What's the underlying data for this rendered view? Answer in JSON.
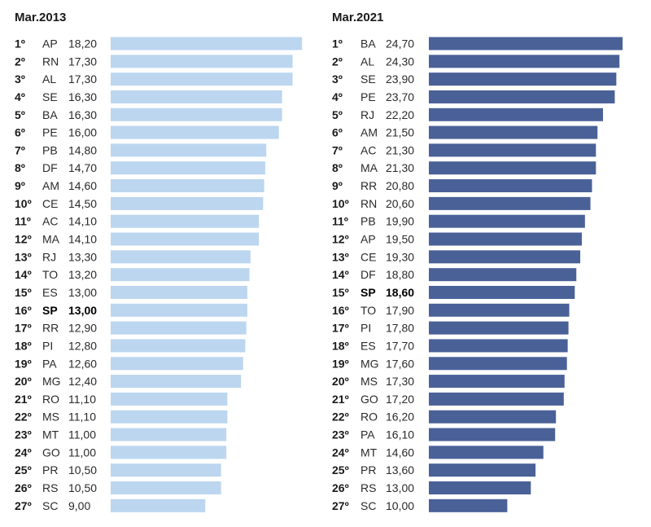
{
  "chart_data": [
    {
      "type": "bar",
      "orientation": "horizontal",
      "title": "Mar.2013",
      "bar_color": "#bcd6f0",
      "highlight": "SP",
      "rows": [
        {
          "rank": "1º",
          "state": "AP",
          "value": 18.2,
          "label": "18,20"
        },
        {
          "rank": "2º",
          "state": "RN",
          "value": 17.3,
          "label": "17,30"
        },
        {
          "rank": "3º",
          "state": "AL",
          "value": 17.3,
          "label": "17,30"
        },
        {
          "rank": "4º",
          "state": "SE",
          "value": 16.3,
          "label": "16,30"
        },
        {
          "rank": "5º",
          "state": "BA",
          "value": 16.3,
          "label": "16,30"
        },
        {
          "rank": "6º",
          "state": "PE",
          "value": 16.0,
          "label": "16,00"
        },
        {
          "rank": "7º",
          "state": "PB",
          "value": 14.8,
          "label": "14,80"
        },
        {
          "rank": "8º",
          "state": "DF",
          "value": 14.7,
          "label": "14,70"
        },
        {
          "rank": "9º",
          "state": "AM",
          "value": 14.6,
          "label": "14,60"
        },
        {
          "rank": "10º",
          "state": "CE",
          "value": 14.5,
          "label": "14,50"
        },
        {
          "rank": "11º",
          "state": "AC",
          "value": 14.1,
          "label": "14,10"
        },
        {
          "rank": "12º",
          "state": "MA",
          "value": 14.1,
          "label": "14,10"
        },
        {
          "rank": "13º",
          "state": "RJ",
          "value": 13.3,
          "label": "13,30"
        },
        {
          "rank": "14º",
          "state": "TO",
          "value": 13.2,
          "label": "13,20"
        },
        {
          "rank": "15º",
          "state": "ES",
          "value": 13.0,
          "label": "13,00"
        },
        {
          "rank": "16º",
          "state": "SP",
          "value": 13.0,
          "label": "13,00"
        },
        {
          "rank": "17º",
          "state": "RR",
          "value": 12.9,
          "label": "12,90"
        },
        {
          "rank": "18º",
          "state": "PI",
          "value": 12.8,
          "label": "12,80"
        },
        {
          "rank": "19º",
          "state": "PA",
          "value": 12.6,
          "label": "12,60"
        },
        {
          "rank": "20º",
          "state": "MG",
          "value": 12.4,
          "label": "12,40"
        },
        {
          "rank": "21º",
          "state": "RO",
          "value": 11.1,
          "label": "11,10"
        },
        {
          "rank": "22º",
          "state": "MS",
          "value": 11.1,
          "label": "11,10"
        },
        {
          "rank": "23º",
          "state": "MT",
          "value": 11.0,
          "label": "11,00"
        },
        {
          "rank": "24º",
          "state": "GO",
          "value": 11.0,
          "label": "11,00"
        },
        {
          "rank": "25º",
          "state": "PR",
          "value": 10.5,
          "label": "10,50"
        },
        {
          "rank": "26º",
          "state": "RS",
          "value": 10.5,
          "label": "10,50"
        },
        {
          "rank": "27º",
          "state": "SC",
          "value": 9.0,
          "label": "9,00"
        }
      ]
    },
    {
      "type": "bar",
      "orientation": "horizontal",
      "title": "Mar.2021",
      "bar_color": "#4a6198",
      "highlight": "SP",
      "rows": [
        {
          "rank": "1º",
          "state": "BA",
          "value": 24.7,
          "label": "24,70"
        },
        {
          "rank": "2º",
          "state": "AL",
          "value": 24.3,
          "label": "24,30"
        },
        {
          "rank": "3º",
          "state": "SE",
          "value": 23.9,
          "label": "23,90"
        },
        {
          "rank": "4º",
          "state": "PE",
          "value": 23.7,
          "label": "23,70"
        },
        {
          "rank": "5º",
          "state": "RJ",
          "value": 22.2,
          "label": "22,20"
        },
        {
          "rank": "6º",
          "state": "AM",
          "value": 21.5,
          "label": "21,50"
        },
        {
          "rank": "7º",
          "state": "AC",
          "value": 21.3,
          "label": "21,30"
        },
        {
          "rank": "8º",
          "state": "MA",
          "value": 21.3,
          "label": "21,30"
        },
        {
          "rank": "9º",
          "state": "RR",
          "value": 20.8,
          "label": "20,80"
        },
        {
          "rank": "10º",
          "state": "RN",
          "value": 20.6,
          "label": "20,60"
        },
        {
          "rank": "11º",
          "state": "PB",
          "value": 19.9,
          "label": "19,90"
        },
        {
          "rank": "12º",
          "state": "AP",
          "value": 19.5,
          "label": "19,50"
        },
        {
          "rank": "13º",
          "state": "CE",
          "value": 19.3,
          "label": "19,30"
        },
        {
          "rank": "14º",
          "state": "DF",
          "value": 18.8,
          "label": "18,80"
        },
        {
          "rank": "15º",
          "state": "SP",
          "value": 18.6,
          "label": "18,60"
        },
        {
          "rank": "16º",
          "state": "TO",
          "value": 17.9,
          "label": "17,90"
        },
        {
          "rank": "17º",
          "state": "PI",
          "value": 17.8,
          "label": "17,80"
        },
        {
          "rank": "18º",
          "state": "ES",
          "value": 17.7,
          "label": "17,70"
        },
        {
          "rank": "19º",
          "state": "MG",
          "value": 17.6,
          "label": "17,60"
        },
        {
          "rank": "20º",
          "state": "MS",
          "value": 17.3,
          "label": "17,30"
        },
        {
          "rank": "21º",
          "state": "GO",
          "value": 17.2,
          "label": "17,20"
        },
        {
          "rank": "22º",
          "state": "RO",
          "value": 16.2,
          "label": "16,20"
        },
        {
          "rank": "23º",
          "state": "PA",
          "value": 16.1,
          "label": "16,10"
        },
        {
          "rank": "24º",
          "state": "MT",
          "value": 14.6,
          "label": "14,60"
        },
        {
          "rank": "25º",
          "state": "PR",
          "value": 13.6,
          "label": "13,60"
        },
        {
          "rank": "26º",
          "state": "RS",
          "value": 13.0,
          "label": "13,00"
        },
        {
          "rank": "27º",
          "state": "SC",
          "value": 10.0,
          "label": "10,00"
        }
      ]
    }
  ]
}
